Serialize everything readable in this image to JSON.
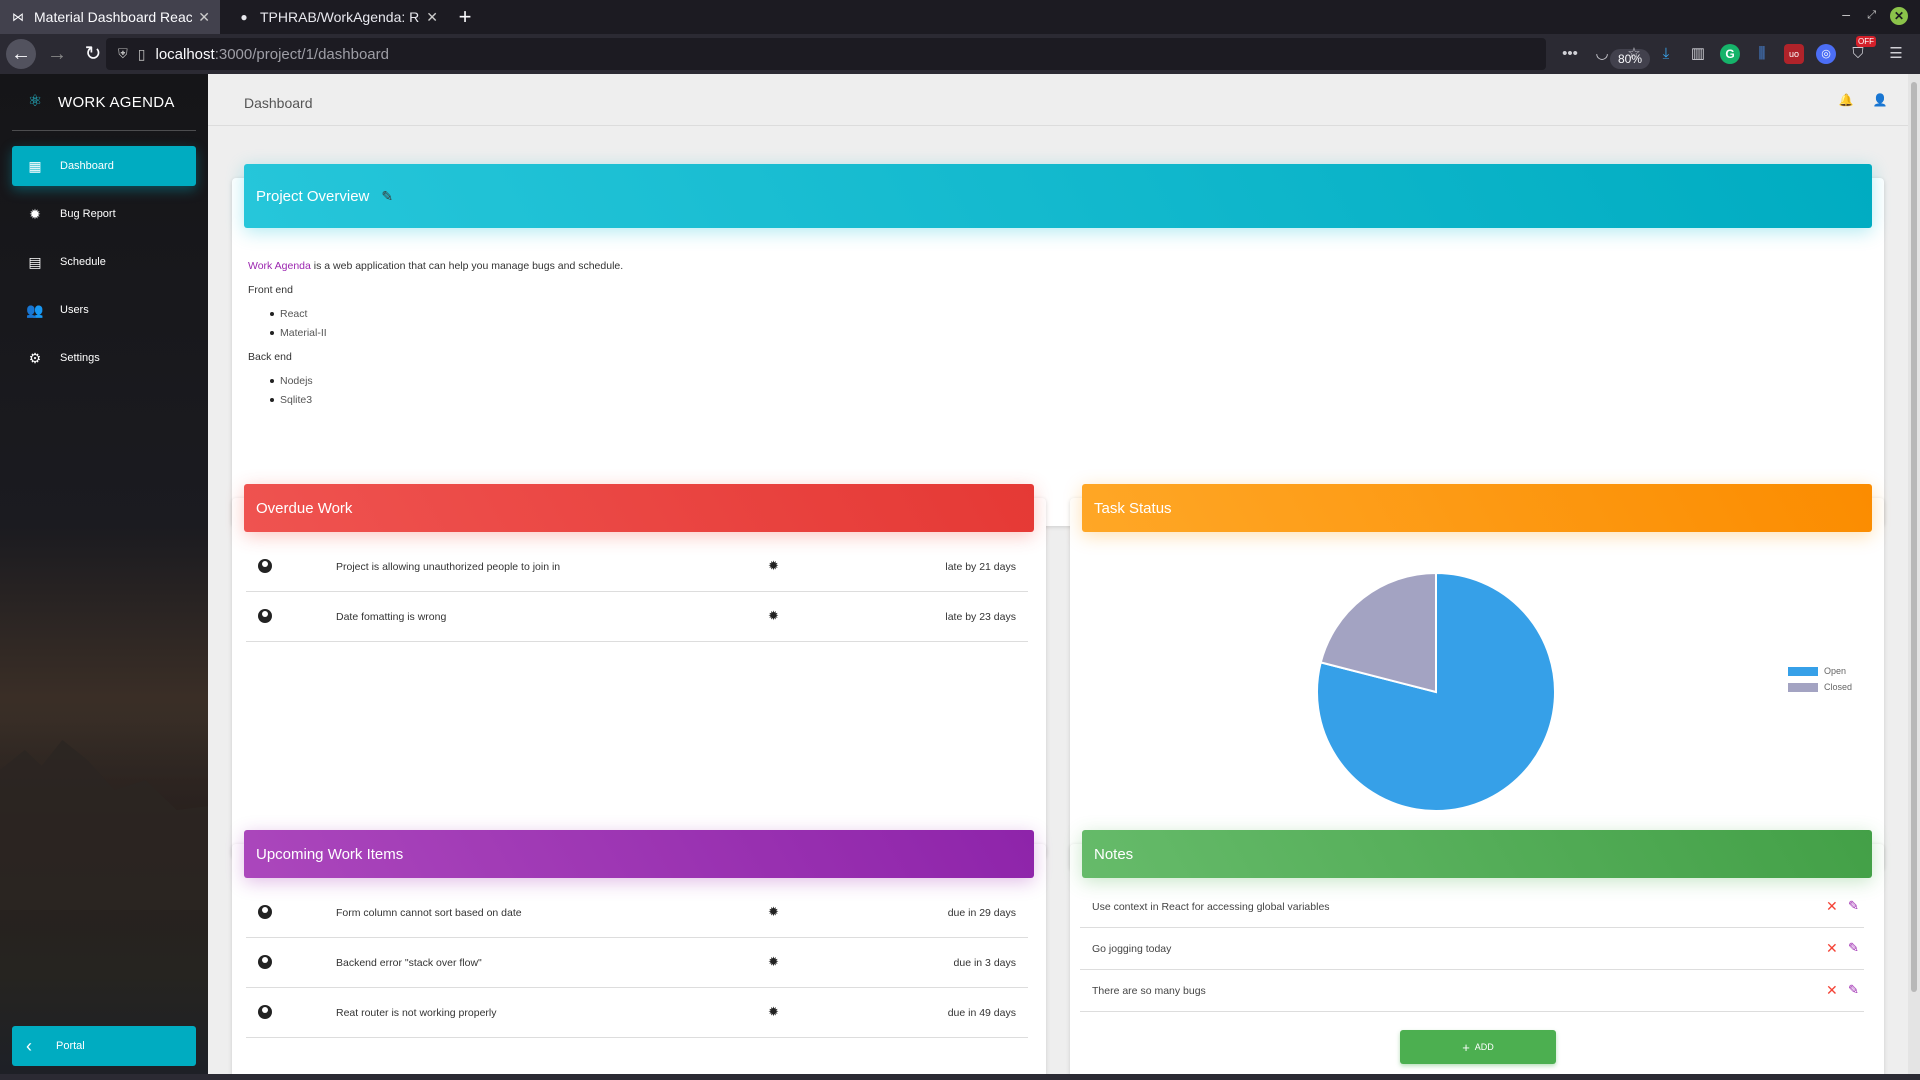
{
  "browser": {
    "tabs": [
      {
        "title": "Material Dashboard React b",
        "favicon": "bowtie-icon"
      },
      {
        "title": "TPHRAB/WorkAgenda: Rea",
        "favicon": "github-icon"
      }
    ],
    "url_host": "localhost",
    "url_path": ":3000/project/1/dashboard",
    "zoom": "80%",
    "addon_badge": "OFF"
  },
  "sidebar": {
    "brand": "WORK AGENDA",
    "items": [
      {
        "label": "Dashboard",
        "icon": "dashboard-icon"
      },
      {
        "label": "Bug Report",
        "icon": "bug-icon"
      },
      {
        "label": "Schedule",
        "icon": "calendar-icon"
      },
      {
        "label": "Users",
        "icon": "people-icon"
      },
      {
        "label": "Settings",
        "icon": "gear-icon"
      }
    ],
    "portal": "Portal"
  },
  "header": {
    "title": "Dashboard"
  },
  "overview": {
    "title": "Project Overview",
    "intro_link": "Work Agenda",
    "intro_rest": " is a web application that can help you manage bugs and schedule.",
    "frontend_label": "Front end",
    "frontend": [
      "React",
      "Material-II"
    ],
    "backend_label": "Back end",
    "backend": [
      "Nodejs",
      "Sqlite3"
    ]
  },
  "overdue": {
    "title": "Overdue Work",
    "rows": [
      {
        "text": "Project is allowing unauthorized people to join in",
        "due": "late by 21 days"
      },
      {
        "text": "Date fomatting is wrong",
        "due": "late by 23 days"
      }
    ]
  },
  "task_status": {
    "title": "Task Status",
    "colors": {
      "open": "#36a0e8",
      "closed": "#a3a3c2"
    }
  },
  "chart_data": {
    "type": "pie",
    "title": "Task Status",
    "labels": [
      "Open",
      "Closed"
    ],
    "values": [
      79,
      21
    ],
    "legend": "right"
  },
  "upcoming": {
    "title": "Upcoming Work Items",
    "rows": [
      {
        "text": "Form column cannot sort based on date",
        "due": "due in 29 days"
      },
      {
        "text": "Backend error \"stack over flow\"",
        "due": "due in 3 days"
      },
      {
        "text": "Reat router is not working properly",
        "due": "due in 49 days"
      }
    ]
  },
  "notes": {
    "title": "Notes",
    "items": [
      "Use context in React for accessing global variables",
      "Go jogging today",
      "There are so many bugs"
    ],
    "add_label": "ADD"
  }
}
